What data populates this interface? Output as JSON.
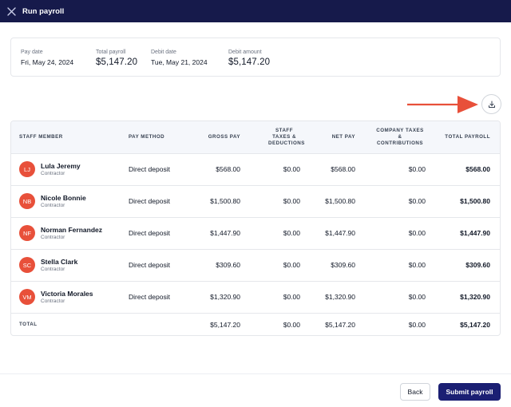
{
  "header": {
    "title": "Run payroll"
  },
  "summary": [
    {
      "label": "Pay date",
      "value": "Fri, May 24, 2024"
    },
    {
      "label": "Total payroll",
      "value": "$5,147.20"
    },
    {
      "label": "Debit date",
      "value": "Tue, May 21, 2024"
    },
    {
      "label": "Debit amount",
      "value": "$5,147.20"
    }
  ],
  "table": {
    "headers": {
      "staff_member": "STAFF MEMBER",
      "pay_method": "PAY METHOD",
      "gross_pay": "GROSS PAY",
      "staff_taxes": "STAFF TAXES & DEDUCTIONS",
      "net_pay": "NET PAY",
      "company_taxes": "COMPANY TAXES & CONTRIBUTIONS",
      "total_payroll": "TOTAL PAYROLL"
    },
    "rows": [
      {
        "initials": "LJ",
        "name": "Lula Jeremy",
        "role": "Contractor",
        "method": "Direct deposit",
        "gross": "$568.00",
        "staff_tax": "$0.00",
        "net": "$568.00",
        "company_tax": "$0.00",
        "total": "$568.00"
      },
      {
        "initials": "NB",
        "name": "Nicole Bonnie",
        "role": "Contractor",
        "method": "Direct deposit",
        "gross": "$1,500.80",
        "staff_tax": "$0.00",
        "net": "$1,500.80",
        "company_tax": "$0.00",
        "total": "$1,500.80"
      },
      {
        "initials": "NF",
        "name": "Norman Fernandez",
        "role": "Contractor",
        "method": "Direct deposit",
        "gross": "$1,447.90",
        "staff_tax": "$0.00",
        "net": "$1,447.90",
        "company_tax": "$0.00",
        "total": "$1,447.90"
      },
      {
        "initials": "SC",
        "name": "Stella Clark",
        "role": "Contractor",
        "method": "Direct deposit",
        "gross": "$309.60",
        "staff_tax": "$0.00",
        "net": "$309.60",
        "company_tax": "$0.00",
        "total": "$309.60"
      },
      {
        "initials": "VM",
        "name": "Victoria Morales",
        "role": "Contractor",
        "method": "Direct deposit",
        "gross": "$1,320.90",
        "staff_tax": "$0.00",
        "net": "$1,320.90",
        "company_tax": "$0.00",
        "total": "$1,320.90"
      }
    ],
    "totals": {
      "label": "TOTAL",
      "gross": "$5,147.20",
      "staff_tax": "$0.00",
      "net": "$5,147.20",
      "company_tax": "$0.00",
      "total": "$5,147.20"
    }
  },
  "actions": {
    "back_label": "Back",
    "submit_label": "Submit payroll"
  },
  "icons": {
    "close": "close-icon",
    "download": "download-icon",
    "arrow": "arrow-right-icon"
  },
  "colors": {
    "header_bg": "#161a4b",
    "accent": "#1b1f73",
    "avatar": "#e8503a",
    "arrow": "#e8503a"
  }
}
